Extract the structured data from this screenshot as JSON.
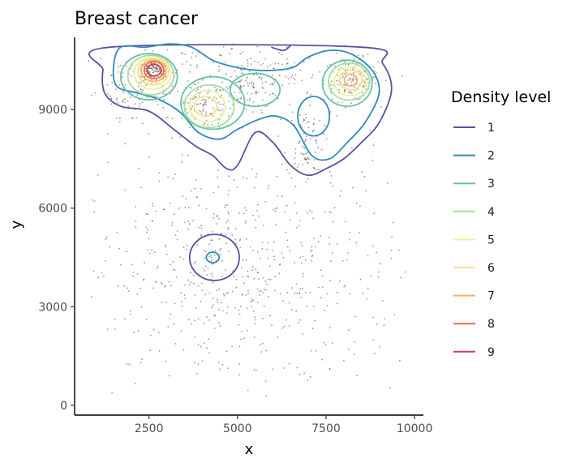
{
  "chart_data": {
    "type": "scatter",
    "title": "Breast cancer",
    "xlabel": "x",
    "ylabel": "y",
    "xlim": [
      400,
      10250
    ],
    "ylim": [
      -300,
      11200
    ],
    "x_ticks": [
      2500,
      5000,
      7500,
      10000
    ],
    "y_ticks": [
      0,
      3000,
      6000,
      9000
    ],
    "x_tick_labels": [
      "2500",
      "5000",
      "7500",
      "10000"
    ],
    "y_tick_labels": [
      "0",
      "3000",
      "6000",
      "9000"
    ],
    "grid": false,
    "legend": {
      "title": "Density level",
      "position": "right",
      "entries": [
        {
          "label": "1",
          "color": "#5E4FA2"
        },
        {
          "label": "2",
          "color": "#3288BD"
        },
        {
          "label": "3",
          "color": "#66C2A5"
        },
        {
          "label": "4",
          "color": "#ABDDA4"
        },
        {
          "label": "5",
          "color": "#E6F598"
        },
        {
          "label": "6",
          "color": "#FEE08B"
        },
        {
          "label": "7",
          "color": "#FDAE61"
        },
        {
          "label": "8",
          "color": "#F46D43"
        },
        {
          "label": "9",
          "color": "#D53E4F"
        }
      ]
    },
    "point_color": "#444444",
    "point_clusters": [
      {
        "name": "peak-a",
        "center": [
          2650,
          10200
        ],
        "spread": [
          220,
          150
        ],
        "count": 120
      },
      {
        "name": "ridge-a",
        "center": [
          2400,
          9900
        ],
        "spread": [
          700,
          550
        ],
        "count": 110
      },
      {
        "name": "peak-b",
        "center": [
          8200,
          9900
        ],
        "spread": [
          380,
          320
        ],
        "count": 140
      },
      {
        "name": "peak-c",
        "center": [
          4100,
          9100
        ],
        "spread": [
          420,
          380
        ],
        "count": 110
      },
      {
        "name": "peak-d",
        "center": [
          5400,
          9650
        ],
        "spread": [
          450,
          300
        ],
        "count": 90
      },
      {
        "name": "upper-band",
        "center": [
          5600,
          10300
        ],
        "spread": [
          1900,
          450
        ],
        "count": 110
      },
      {
        "name": "right-column",
        "center": [
          6900,
          8050
        ],
        "spread": [
          260,
          600
        ],
        "count": 80
      },
      {
        "name": "left-upper",
        "center": [
          1700,
          9300
        ],
        "spread": [
          300,
          300
        ],
        "count": 25
      },
      {
        "name": "small-cluster",
        "center": [
          4300,
          4450
        ],
        "spread": [
          120,
          120
        ],
        "count": 10
      },
      {
        "name": "small-cluster-2",
        "center": [
          6700,
          3500
        ],
        "spread": [
          60,
          60
        ],
        "count": 5
      },
      {
        "name": "tissue-scatter",
        "center": [
          5000,
          4000
        ],
        "spread": [
          2300,
          1900
        ],
        "count": 650
      }
    ],
    "contours": [
      {
        "level": "1",
        "shape": "upper-region",
        "x": [
          1400,
          1200,
          1250,
          1700,
          2500,
          3200,
          3800,
          4300,
          4700,
          5000,
          5500,
          6000,
          6500,
          7000,
          7500,
          8000,
          8500,
          9000,
          9350,
          9100,
          8500
        ],
        "y": [
          10900,
          10200,
          9500,
          9100,
          8950,
          8400,
          7900,
          7600,
          7200,
          7300,
          8300,
          8000,
          7300,
          7000,
          7200,
          7500,
          8000,
          8600,
          9600,
          10400,
          10900
        ]
      },
      {
        "level": "1",
        "shape": "ring",
        "center": [
          4350,
          4500
        ],
        "radius": [
          700,
          700
        ]
      },
      {
        "level": "1",
        "shape": "upper-arc",
        "x": [
          5950,
          6300,
          6500
        ],
        "y": [
          10900,
          10800,
          10950
        ]
      },
      {
        "level": "2",
        "shape": "upper-region",
        "x": [
          1700,
          1500,
          1600,
          2200,
          2800,
          3400,
          3900,
          4500,
          5000,
          5600,
          6100,
          6600,
          7100,
          7600,
          8100,
          8600,
          9000,
          8800,
          8200,
          7600,
          7000,
          6600,
          6100,
          5500,
          4900,
          4300,
          3700,
          3100,
          2400
        ],
        "y": [
          10900,
          10300,
          9700,
          9500,
          9300,
          8900,
          8300,
          8100,
          8400,
          8700,
          8800,
          8500,
          7600,
          7500,
          8000,
          8600,
          9500,
          10200,
          10700,
          10800,
          10600,
          10300,
          10200,
          10200,
          10300,
          10500,
          10900,
          11000,
          10900
        ]
      },
      {
        "level": "2",
        "shape": "ring",
        "center": [
          4300,
          4500
        ],
        "radius": [
          180,
          160
        ]
      },
      {
        "level": "2",
        "shape": "inner-loop",
        "center": [
          7150,
          8800
        ],
        "radius": [
          450,
          600
        ]
      },
      {
        "level": "3",
        "shape": "ellipse",
        "center": [
          2500,
          10000
        ],
        "radius": [
          800,
          700
        ]
      },
      {
        "level": "3",
        "shape": "ellipse",
        "center": [
          4300,
          9200
        ],
        "radius": [
          900,
          800
        ]
      },
      {
        "level": "3",
        "shape": "ellipse",
        "center": [
          5500,
          9600
        ],
        "radius": [
          700,
          500
        ]
      },
      {
        "level": "3",
        "shape": "ellipse",
        "center": [
          8100,
          9800
        ],
        "radius": [
          700,
          700
        ]
      },
      {
        "level": "4",
        "shape": "ellipse",
        "center": [
          2550,
          10050
        ],
        "radius": [
          650,
          600
        ]
      },
      {
        "level": "4",
        "shape": "ellipse",
        "center": [
          4200,
          9100
        ],
        "radius": [
          700,
          650
        ]
      },
      {
        "level": "4",
        "shape": "ellipse",
        "center": [
          8150,
          9850
        ],
        "radius": [
          580,
          560
        ]
      },
      {
        "level": "5",
        "shape": "ellipse",
        "center": [
          2600,
          10100
        ],
        "radius": [
          520,
          480
        ]
      },
      {
        "level": "5",
        "shape": "ellipse",
        "center": [
          4150,
          9100
        ],
        "radius": [
          500,
          480
        ]
      },
      {
        "level": "5",
        "shape": "ellipse",
        "center": [
          8180,
          9850
        ],
        "radius": [
          450,
          430
        ]
      },
      {
        "level": "6",
        "shape": "ellipse",
        "center": [
          2620,
          10150
        ],
        "radius": [
          430,
          400
        ]
      },
      {
        "level": "6",
        "shape": "ellipse",
        "center": [
          4100,
          9100
        ],
        "radius": [
          320,
          300
        ]
      },
      {
        "level": "6",
        "shape": "ellipse",
        "center": [
          8200,
          9900
        ],
        "radius": [
          320,
          300
        ]
      },
      {
        "level": "7",
        "shape": "ellipse",
        "center": [
          2630,
          10180
        ],
        "radius": [
          350,
          320
        ]
      },
      {
        "level": "7",
        "shape": "ellipse",
        "center": [
          8200,
          9900
        ],
        "radius": [
          180,
          180
        ]
      },
      {
        "level": "8",
        "shape": "ellipse",
        "center": [
          2640,
          10200
        ],
        "radius": [
          280,
          260
        ]
      },
      {
        "level": "9",
        "shape": "ellipse",
        "center": [
          2640,
          10200
        ],
        "radius": [
          200,
          180
        ]
      }
    ]
  }
}
